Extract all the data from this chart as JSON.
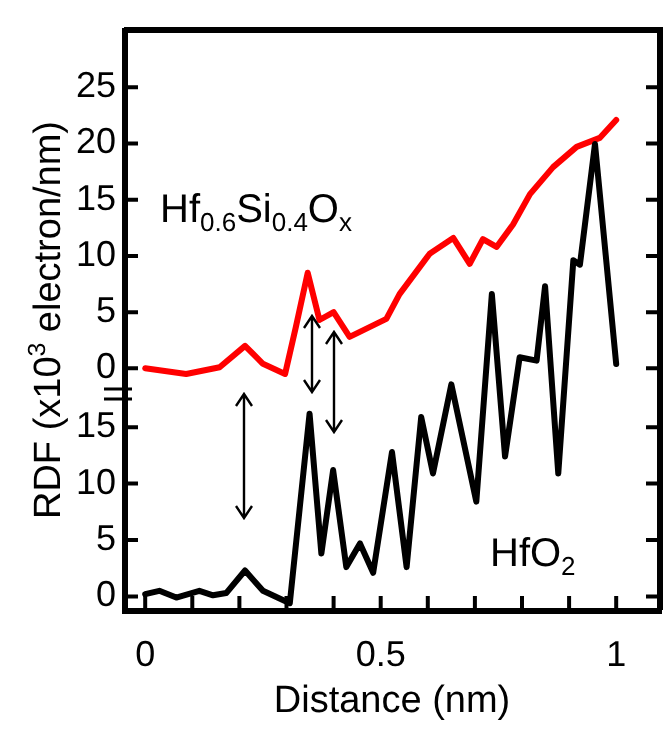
{
  "chart_data": [
    {
      "type": "line",
      "tick_labels": "y",
      "xlim": [
        -0.045,
        1.093
      ],
      "ylim": [
        -21.5,
        30.1
      ],
      "yticks": [
        0,
        5,
        10,
        15,
        20,
        25
      ],
      "grid": false,
      "marker": "none",
      "series": [
        {
          "name": "Hf$_{0.6}$Si$_{0.4}$O$_{x}$",
          "color": "#ff0000",
          "x": [
            0,
            0.087,
            0.158,
            0.212,
            0.25,
            0.297,
            0.32,
            0.345,
            0.37,
            0.4,
            0.434,
            0.512,
            0.54,
            0.604,
            0.654,
            0.689,
            0.717,
            0.746,
            0.781,
            0.817,
            0.866,
            0.916,
            0.965,
            1.0
          ],
          "values": [
            0,
            -0.5,
            0.1,
            2.0,
            0.4,
            -0.5,
            3.7,
            8.5,
            4.3,
            5.0,
            2.8,
            4.4,
            6.6,
            10.2,
            11.6,
            9.3,
            11.5,
            10.8,
            12.8,
            15.5,
            17.9,
            19.7,
            20.5,
            22.1
          ]
        }
      ]
    },
    {
      "type": "line",
      "xlabel": "Distance (nm)",
      "ylabel": "RDF (x10$^{3}$ electron/nm)",
      "xlim": [
        -0.045,
        1.093
      ],
      "ylim": [
        -1.2,
        50.2
      ],
      "yticks": [
        0,
        5,
        10,
        15
      ],
      "grid": false,
      "marker": "none",
      "xticks": [
        0,
        {
          "value": 0.1,
          "label": null
        },
        {
          "value": 0.2,
          "label": null
        },
        {
          "value": 0.3,
          "label": null
        },
        {
          "value": 0.4,
          "label": null
        },
        0.5,
        {
          "value": 0.6,
          "label": null
        },
        {
          "value": 0.7,
          "label": null
        },
        {
          "value": 0.8,
          "label": null
        },
        {
          "value": 0.9,
          "label": null
        },
        1
      ],
      "series": [
        {
          "name": "HfO$_{2}$",
          "color": "#000000",
          "x": [
            0,
            0.03,
            0.066,
            0.115,
            0.144,
            0.172,
            0.212,
            0.25,
            0.307,
            0.349,
            0.374,
            0.399,
            0.427,
            0.456,
            0.484,
            0.524,
            0.555,
            0.586,
            0.611,
            0.65,
            0.703,
            0.736,
            0.764,
            0.795,
            0.831,
            0.849,
            0.877,
            0.909,
            0.923,
            0.955,
            1.0
          ],
          "values": [
            0.2,
            0.5,
            -0.1,
            0.5,
            0.1,
            0.3,
            2.3,
            0.5,
            -0.6,
            16.2,
            3.8,
            11.2,
            2.6,
            4.7,
            2.1,
            12.8,
            2.6,
            15.9,
            10.9,
            18.8,
            8.4,
            26.8,
            12.4,
            21.2,
            20.9,
            27.5,
            10.9,
            29.8,
            29.4,
            40.1,
            20.6
          ]
        }
      ]
    }
  ]
}
